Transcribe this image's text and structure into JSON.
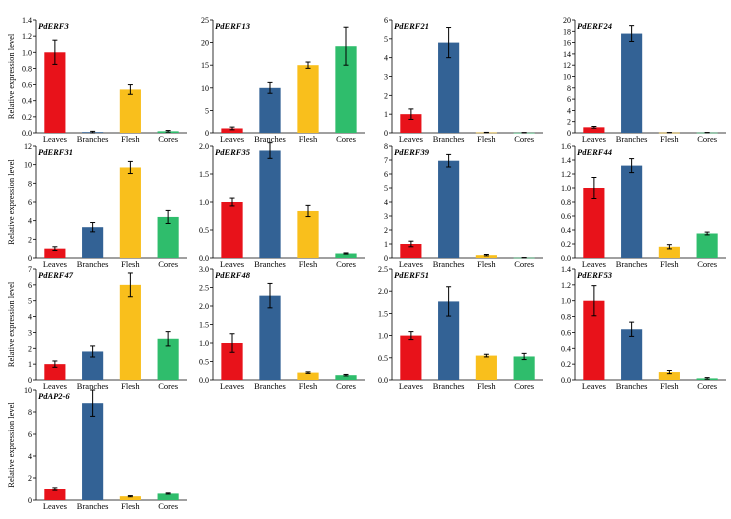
{
  "figure": {
    "ylabel": "Relative expression level",
    "categories": [
      "Leaves",
      "Branches",
      "Flesh",
      "Cores"
    ],
    "colors": [
      "#e8121a",
      "#336295",
      "#f9bf1c",
      "#2fbd6c"
    ]
  },
  "chart_data": [
    {
      "type": "bar",
      "title": "PdERF3",
      "categories": [
        "Leaves",
        "Branches",
        "Flesh",
        "Cores"
      ],
      "values": [
        1.0,
        0.01,
        0.54,
        0.02
      ],
      "errors": [
        0.15,
        0.01,
        0.06,
        0.01
      ],
      "ylim": [
        0,
        1.4
      ],
      "yticks": [
        "0.0",
        "0.2",
        "0.4",
        "0.6",
        "0.8",
        "1.0",
        "1.2",
        "1.4"
      ],
      "ylabel": "Relative expression level",
      "xlabel": ""
    },
    {
      "type": "bar",
      "title": "PdERF13",
      "categories": [
        "Leaves",
        "Branches",
        "Flesh",
        "Cores"
      ],
      "values": [
        1.0,
        10.0,
        15.0,
        19.2
      ],
      "errors": [
        0.3,
        1.2,
        0.7,
        4.2
      ],
      "ylim": [
        0,
        25
      ],
      "yticks": [
        "0",
        "5",
        "10",
        "15",
        "20",
        "25"
      ],
      "ylabel": "",
      "xlabel": ""
    },
    {
      "type": "bar",
      "title": "PdERF21",
      "categories": [
        "Leaves",
        "Branches",
        "Flesh",
        "Cores"
      ],
      "values": [
        1.0,
        4.8,
        0.02,
        0.01
      ],
      "errors": [
        0.28,
        0.8,
        0.01,
        0.01
      ],
      "ylim": [
        0,
        6
      ],
      "yticks": [
        "0",
        "1",
        "2",
        "3",
        "4",
        "5",
        "6"
      ],
      "ylabel": "",
      "xlabel": ""
    },
    {
      "type": "bar",
      "title": "PdERF24",
      "categories": [
        "Leaves",
        "Branches",
        "Flesh",
        "Cores"
      ],
      "values": [
        1.0,
        17.6,
        0.05,
        0.05
      ],
      "errors": [
        0.15,
        1.4,
        0.02,
        0.02
      ],
      "ylim": [
        0,
        20
      ],
      "yticks": [
        "0",
        "2",
        "4",
        "6",
        "8",
        "10",
        "12",
        "14",
        "16",
        "18",
        "20"
      ],
      "ylabel": "",
      "xlabel": ""
    },
    {
      "type": "bar",
      "title": "PdERF31",
      "categories": [
        "Leaves",
        "Branches",
        "Flesh",
        "Cores"
      ],
      "values": [
        1.0,
        3.3,
        9.7,
        4.4
      ],
      "errors": [
        0.2,
        0.5,
        0.65,
        0.7
      ],
      "ylim": [
        0,
        12
      ],
      "yticks": [
        "0",
        "2",
        "4",
        "6",
        "8",
        "10",
        "12"
      ],
      "ylabel": "Relative expression level",
      "xlabel": ""
    },
    {
      "type": "bar",
      "title": "PdERF35",
      "categories": [
        "Leaves",
        "Branches",
        "Flesh",
        "Cores"
      ],
      "values": [
        1.0,
        1.92,
        0.84,
        0.08
      ],
      "errors": [
        0.07,
        0.14,
        0.1,
        0.01
      ],
      "ylim": [
        0,
        2.0
      ],
      "yticks": [
        "0.0",
        "0.5",
        "1.0",
        "1.5",
        "2.0"
      ],
      "ylabel": "",
      "xlabel": ""
    },
    {
      "type": "bar",
      "title": "PdERF39",
      "categories": [
        "Leaves",
        "Branches",
        "Flesh",
        "Cores"
      ],
      "values": [
        1.0,
        6.95,
        0.2,
        0.02
      ],
      "errors": [
        0.2,
        0.45,
        0.05,
        0.01
      ],
      "ylim": [
        0,
        8
      ],
      "yticks": [
        "0",
        "1",
        "2",
        "3",
        "4",
        "5",
        "6",
        "7",
        "8"
      ],
      "ylabel": "",
      "xlabel": ""
    },
    {
      "type": "bar",
      "title": "PdERF44",
      "categories": [
        "Leaves",
        "Branches",
        "Flesh",
        "Cores"
      ],
      "values": [
        1.0,
        1.32,
        0.16,
        0.35
      ],
      "errors": [
        0.15,
        0.1,
        0.03,
        0.02
      ],
      "ylim": [
        0,
        1.6
      ],
      "yticks": [
        "0.0",
        "0.2",
        "0.4",
        "0.6",
        "0.8",
        "1.0",
        "1.2",
        "1.4",
        "1.6"
      ],
      "ylabel": "",
      "xlabel": ""
    },
    {
      "type": "bar",
      "title": "PdERF47",
      "categories": [
        "Leaves",
        "Branches",
        "Flesh",
        "Cores"
      ],
      "values": [
        1.0,
        1.8,
        6.0,
        2.6
      ],
      "errors": [
        0.2,
        0.35,
        0.75,
        0.45
      ],
      "ylim": [
        0,
        7
      ],
      "yticks": [
        "0",
        "1",
        "2",
        "3",
        "4",
        "5",
        "6",
        "7"
      ],
      "ylabel": "Relative expression level",
      "xlabel": ""
    },
    {
      "type": "bar",
      "title": "PdERF48",
      "categories": [
        "Leaves",
        "Branches",
        "Flesh",
        "Cores"
      ],
      "values": [
        1.0,
        2.28,
        0.2,
        0.13
      ],
      "errors": [
        0.25,
        0.33,
        0.02,
        0.02
      ],
      "ylim": [
        0,
        3.0
      ],
      "yticks": [
        "0.0",
        "0.5",
        "1.0",
        "1.5",
        "2.0",
        "2.5",
        "3.0"
      ],
      "ylabel": "",
      "xlabel": ""
    },
    {
      "type": "bar",
      "title": "PdERF51",
      "categories": [
        "Leaves",
        "Branches",
        "Flesh",
        "Cores"
      ],
      "values": [
        1.0,
        1.77,
        0.55,
        0.53
      ],
      "errors": [
        0.09,
        0.33,
        0.03,
        0.07
      ],
      "ylim": [
        0,
        2.5
      ],
      "yticks": [
        "0.0",
        "0.5",
        "1.0",
        "1.5",
        "2.0",
        "2.5"
      ],
      "ylabel": "",
      "xlabel": ""
    },
    {
      "type": "bar",
      "title": "PdERF53",
      "categories": [
        "Leaves",
        "Branches",
        "Flesh",
        "Cores"
      ],
      "values": [
        1.0,
        0.64,
        0.1,
        0.02
      ],
      "errors": [
        0.19,
        0.09,
        0.02,
        0.01
      ],
      "ylim": [
        0,
        1.4
      ],
      "yticks": [
        "0.0",
        "0.2",
        "0.4",
        "0.6",
        "0.8",
        "1.0",
        "1.2",
        "1.4"
      ],
      "ylabel": "",
      "xlabel": ""
    },
    {
      "type": "bar",
      "title": "PdAP2-6",
      "categories": [
        "Leaves",
        "Branches",
        "Flesh",
        "Cores"
      ],
      "values": [
        1.0,
        8.8,
        0.35,
        0.6
      ],
      "errors": [
        0.1,
        1.2,
        0.05,
        0.05
      ],
      "ylim": [
        0,
        10
      ],
      "yticks": [
        "0",
        "2",
        "4",
        "6",
        "8",
        "10"
      ],
      "ylabel": "Relative expression level",
      "xlabel": ""
    }
  ]
}
